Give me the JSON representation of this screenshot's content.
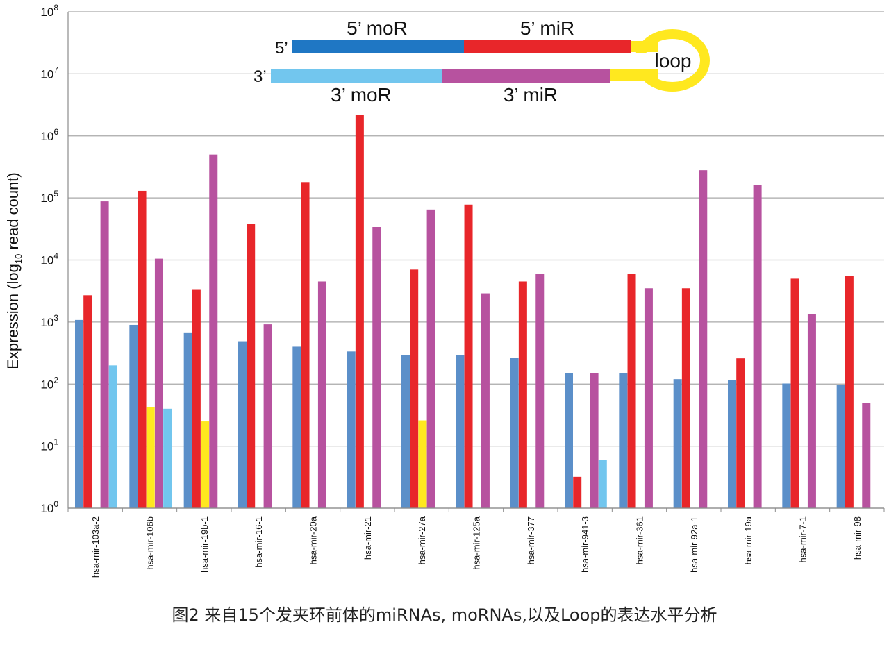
{
  "caption": "图2 来自15个发夹环前体的miRNAs, moRNAs,以及Loop的表达水平分析",
  "diagram": {
    "five_prime": "5’",
    "three_prime": "3’",
    "five_moR": "5’ moR",
    "five_miR": "5’ miR",
    "three_moR": "3’ moR",
    "three_miR": "3’ miR",
    "loop": "loop",
    "colors": {
      "five_moR": "#1f77c4",
      "five_miR": "#e8262a",
      "three_moR": "#72c6ee",
      "three_miR": "#b7529f",
      "loop": "#ffe81f"
    }
  },
  "chart_data": {
    "type": "bar",
    "yscale": "log",
    "ylim": [
      1,
      100000000
    ],
    "ylabel_main": "Expression (log",
    "ylabel_sub": "10",
    "ylabel_tail": " read count)",
    "yticks": [
      {
        "value": 1,
        "base": "10",
        "exp": "0"
      },
      {
        "value": 10,
        "base": "10",
        "exp": "1"
      },
      {
        "value": 100,
        "base": "10",
        "exp": "2"
      },
      {
        "value": 1000,
        "base": "10",
        "exp": "3"
      },
      {
        "value": 10000,
        "base": "10",
        "exp": "4"
      },
      {
        "value": 100000,
        "base": "10",
        "exp": "5"
      },
      {
        "value": 1000000,
        "base": "10",
        "exp": "6"
      },
      {
        "value": 10000000,
        "base": "10",
        "exp": "7"
      },
      {
        "value": 100000000,
        "base": "10",
        "exp": "8"
      }
    ],
    "grid": true,
    "categories": [
      "hsa-mir-103a-2",
      "hsa-mir-106b",
      "hsa-mir-19b-1",
      "hsa-mir-16-1",
      "hsa-mir-20a",
      "hsa-mir-21",
      "hsa-mir-27a",
      "hsa-mir-125a",
      "hsa-mir-377",
      "hsa-mir-941-3",
      "hsa-mir-361",
      "hsa-mir-92a-1",
      "hsa-mir-19a",
      "hsa-mir-7-1",
      "hsa-mir-98"
    ],
    "series": [
      {
        "key": "five_moR",
        "color": "#5b8fc9",
        "values": [
          1080,
          900,
          680,
          490,
          400,
          335,
          295,
          290,
          265,
          150,
          150,
          120,
          115,
          102,
          98
        ]
      },
      {
        "key": "five_miR",
        "color": "#e8262a",
        "values": [
          2700,
          130000,
          3300,
          38000,
          180000,
          2200000,
          7000,
          78000,
          4500,
          3.2,
          6000,
          3500,
          260,
          5000,
          5500
        ]
      },
      {
        "key": "loop",
        "color": "#ffe81f",
        "values": [
          null,
          42,
          25,
          null,
          null,
          null,
          26,
          null,
          null,
          null,
          null,
          null,
          null,
          null,
          null
        ]
      },
      {
        "key": "three_miR",
        "color": "#b7529f",
        "values": [
          88000,
          10500,
          500000,
          920,
          4500,
          34000,
          65000,
          2900,
          6000,
          150,
          3500,
          280000,
          160000,
          1350,
          50
        ]
      },
      {
        "key": "three_moR",
        "color": "#72c6ee",
        "values": [
          200,
          40,
          null,
          null,
          null,
          null,
          null,
          null,
          null,
          6,
          null,
          null,
          null,
          null,
          null
        ]
      }
    ]
  }
}
